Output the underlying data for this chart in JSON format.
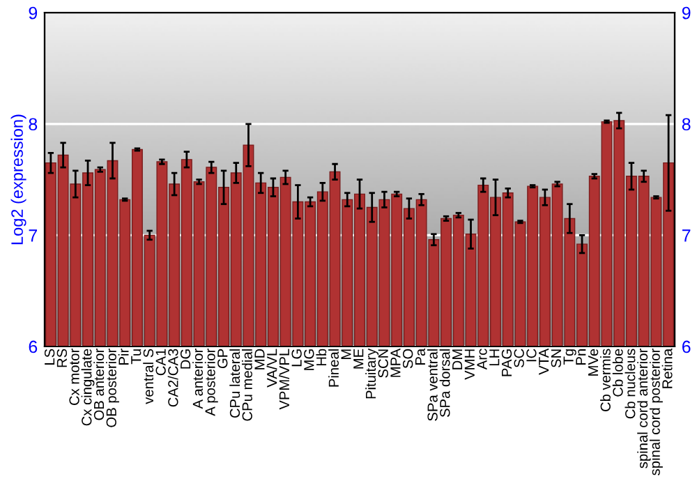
{
  "chart_data": {
    "type": "bar",
    "ylabel": "Log2 (expression)",
    "categories": [
      "LS",
      "RS",
      "Cx motor",
      "Cx cingulate",
      "OB anterior",
      "OB posterior",
      "Pir",
      "Tu",
      "ventral S",
      "CA1",
      "CA2/CA3",
      "DG",
      "A anterior",
      "A posterior",
      "GP",
      "CPu lateral",
      "CPu medial",
      "MD",
      "VA/VL",
      "VPM/VPL",
      "LG",
      "MG",
      "Hb",
      "Pineal",
      "M",
      "ME",
      "Pituitary",
      "SCN",
      "MPA",
      "SO",
      "Pa",
      "SPa ventral",
      "SPa dorsal",
      "DM",
      "VMH",
      "Arc",
      "LH",
      "PAG",
      "SC",
      "IC",
      "VTA",
      "SN",
      "Tg",
      "Pn",
      "MVe",
      "Cb vermis",
      "Cb lobe",
      "Cb nucleus",
      "spinal cord anterior",
      "spinal cord posterior",
      "Retina"
    ],
    "values": [
      7.65,
      7.72,
      7.46,
      7.56,
      7.59,
      7.67,
      7.32,
      7.77,
      7.0,
      7.66,
      7.46,
      7.68,
      7.48,
      7.61,
      7.43,
      7.56,
      7.81,
      7.47,
      7.43,
      7.52,
      7.3,
      7.3,
      7.39,
      7.57,
      7.32,
      7.37,
      7.25,
      7.32,
      7.37,
      7.24,
      7.32,
      6.96,
      7.15,
      7.18,
      7.01,
      7.45,
      7.34,
      7.38,
      7.12,
      7.44,
      7.34,
      7.46,
      7.15,
      6.92,
      7.53,
      8.02,
      8.03,
      7.53,
      7.53,
      7.34,
      7.65
    ],
    "errors": [
      0.09,
      0.11,
      0.12,
      0.11,
      0.02,
      0.16,
      0.01,
      0.01,
      0.04,
      0.02,
      0.1,
      0.07,
      0.02,
      0.05,
      0.15,
      0.09,
      0.19,
      0.09,
      0.08,
      0.06,
      0.15,
      0.04,
      0.08,
      0.07,
      0.06,
      0.13,
      0.13,
      0.07,
      0.02,
      0.09,
      0.05,
      0.05,
      0.02,
      0.02,
      0.13,
      0.06,
      0.16,
      0.04,
      0.01,
      0.01,
      0.07,
      0.02,
      0.13,
      0.08,
      0.02,
      0.01,
      0.07,
      0.12,
      0.05,
      0.01,
      0.43
    ],
    "color": "#b03232",
    "ylim": [
      6,
      9
    ],
    "yticks": [
      6,
      7,
      8,
      9
    ],
    "y2lim": [
      6,
      9
    ],
    "y2ticks": [
      6,
      7,
      8,
      9
    ],
    "grid": "y",
    "legend": false
  }
}
